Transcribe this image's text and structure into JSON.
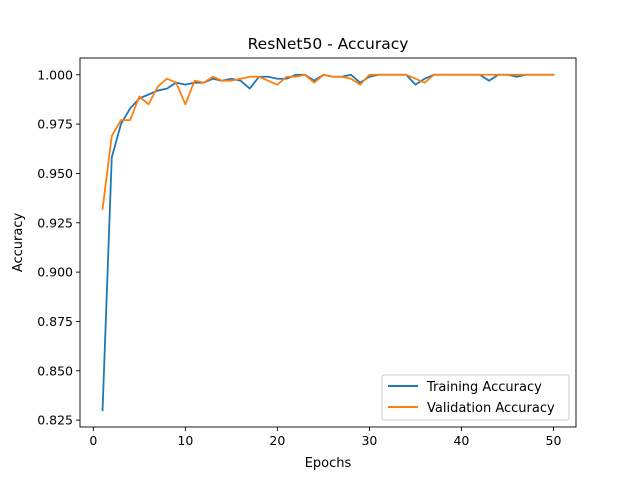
{
  "chart_data": {
    "type": "line",
    "title": "ResNet50 - Accuracy",
    "xlabel": "Epochs",
    "ylabel": "Accuracy",
    "xlim": [
      -1.45,
      52.45
    ],
    "ylim": [
      0.8215,
      1.0085
    ],
    "x_ticks": [
      0,
      10,
      20,
      30,
      40,
      50
    ],
    "x_tick_labels": [
      "0",
      "10",
      "20",
      "30",
      "40",
      "50"
    ],
    "y_ticks": [
      0.825,
      0.85,
      0.875,
      0.9,
      0.925,
      0.95,
      0.975,
      1.0
    ],
    "y_tick_labels": [
      "0.825",
      "0.850",
      "0.875",
      "0.900",
      "0.925",
      "0.950",
      "0.975",
      "1.000"
    ],
    "grid": false,
    "legend_position": "bottom-right",
    "x": [
      1,
      2,
      3,
      4,
      5,
      6,
      7,
      8,
      9,
      10,
      11,
      12,
      13,
      14,
      15,
      16,
      17,
      18,
      19,
      20,
      21,
      22,
      23,
      24,
      25,
      26,
      27,
      28,
      29,
      30,
      31,
      32,
      33,
      34,
      35,
      36,
      37,
      38,
      39,
      40,
      41,
      42,
      43,
      44,
      45,
      46,
      47,
      48,
      49,
      50
    ],
    "series": [
      {
        "name": "Training Accuracy",
        "color": "#1f77b4",
        "values": [
          0.83,
          0.958,
          0.975,
          0.983,
          0.988,
          0.99,
          0.992,
          0.993,
          0.996,
          0.995,
          0.996,
          0.996,
          0.998,
          0.997,
          0.998,
          0.997,
          0.993,
          0.999,
          0.999,
          0.998,
          0.998,
          1.0,
          1.0,
          0.997,
          1.0,
          0.999,
          0.999,
          1.0,
          0.996,
          0.999,
          1.0,
          1.0,
          1.0,
          1.0,
          0.995,
          0.998,
          1.0,
          1.0,
          1.0,
          1.0,
          1.0,
          1.0,
          0.997,
          1.0,
          1.0,
          0.999,
          1.0,
          1.0,
          1.0,
          1.0
        ]
      },
      {
        "name": "Validation Accuracy",
        "color": "#ff7f0e",
        "values": [
          0.932,
          0.969,
          0.977,
          0.977,
          0.989,
          0.985,
          0.994,
          0.998,
          0.996,
          0.985,
          0.997,
          0.996,
          0.999,
          0.997,
          0.997,
          0.998,
          0.999,
          0.999,
          0.997,
          0.995,
          0.999,
          0.999,
          1.0,
          0.996,
          1.0,
          0.999,
          0.999,
          0.998,
          0.995,
          1.0,
          1.0,
          1.0,
          1.0,
          1.0,
          0.998,
          0.996,
          1.0,
          1.0,
          1.0,
          1.0,
          1.0,
          1.0,
          1.0,
          1.0,
          1.0,
          1.0,
          1.0,
          1.0,
          1.0,
          1.0
        ]
      }
    ]
  }
}
